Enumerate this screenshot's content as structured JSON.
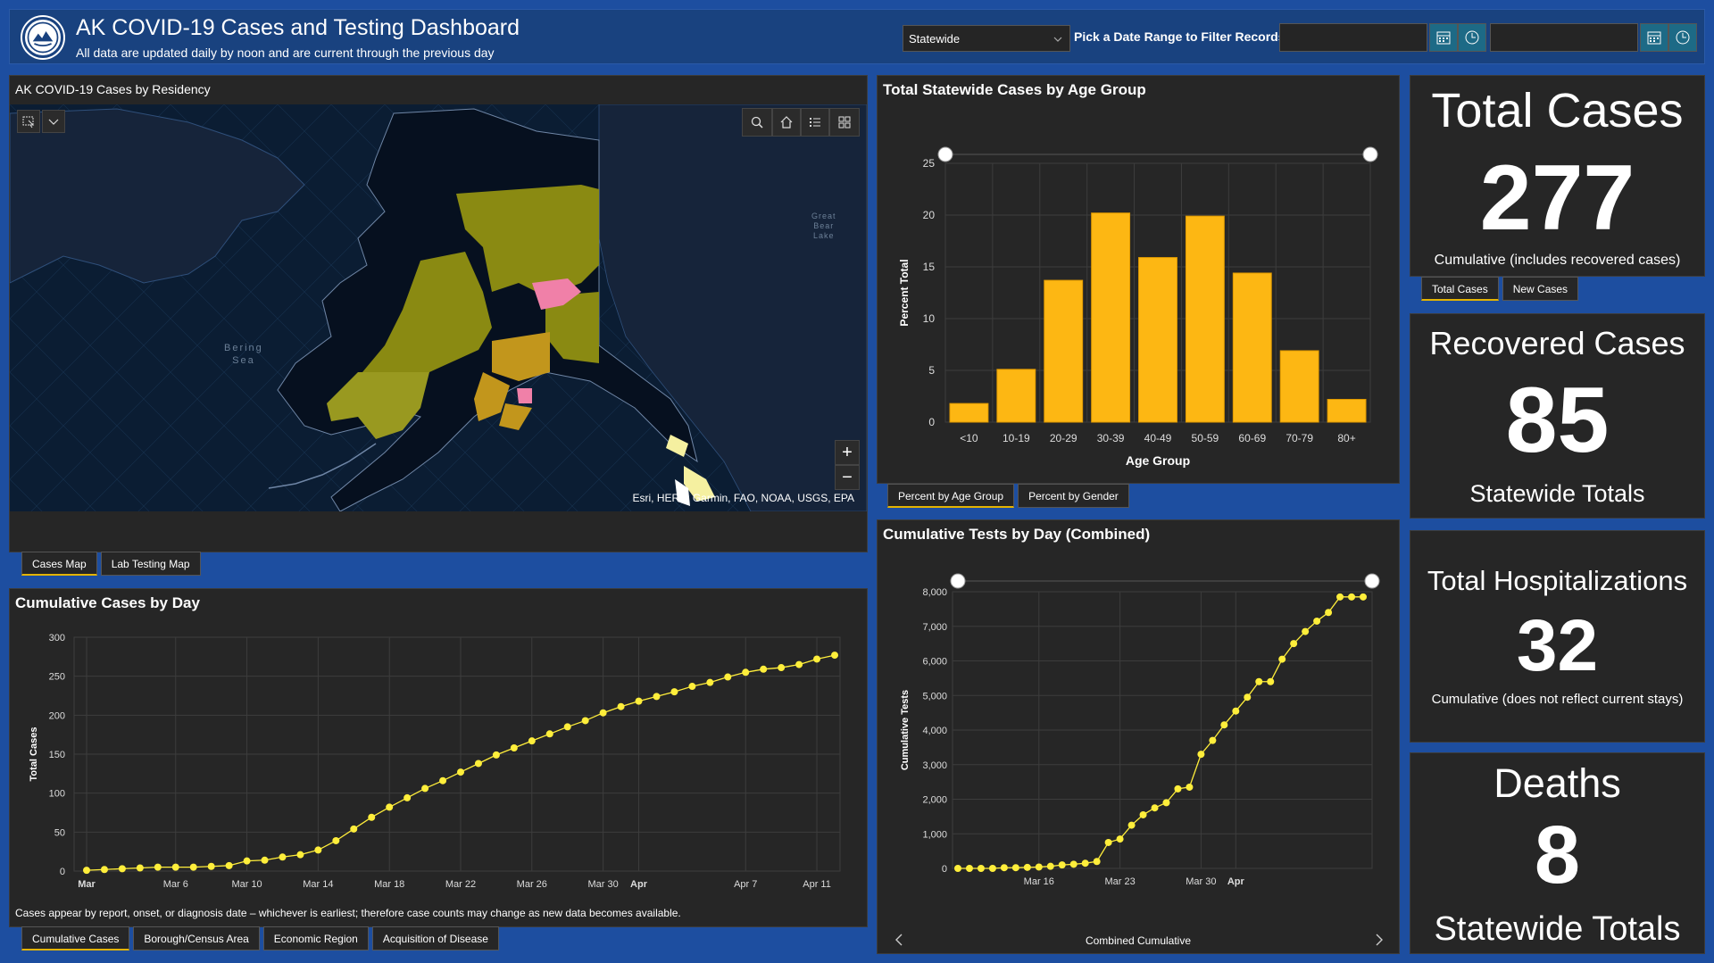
{
  "header": {
    "title": "AK COVID-19 Cases and Testing Dashboard",
    "subtitle": "All data are updated daily by noon and are current through the previous day",
    "region_value": "Statewide",
    "date_label": "Pick a Date Range to Filter Records"
  },
  "map_panel": {
    "title": "AK COVID-19 Cases by Residency",
    "attribution": "Esri, HERE, Garmin, FAO, NOAA, USGS, EPA",
    "labels": {
      "bering_1": "Bering",
      "bering_2": "Sea",
      "bear_1": "Great",
      "bear_2": "Bear",
      "bear_3": "Lake"
    },
    "zoom_in": "+",
    "zoom_out": "−",
    "tabs": [
      "Cases Map",
      "Lab Testing Map"
    ]
  },
  "age_panel": {
    "title": "Total Statewide Cases by Age Group",
    "tabs": [
      "Percent by Age Group",
      "Percent by Gender"
    ]
  },
  "cumulative_panel": {
    "title": "Cumulative Cases by Day",
    "footnote": "Cases appear by report, onset, or diagnosis date – whichever is earliest; therefore case counts may change as new data becomes available.",
    "tabs": [
      "Cumulative Cases",
      "Borough/Census Area",
      "Economic Region",
      "Acquisition of Disease"
    ]
  },
  "tests_panel": {
    "title": "Cumulative Tests by Day (Combined)",
    "nav_label": "Combined Cumulative"
  },
  "kpis": {
    "total_cases": {
      "title": "Total Cases",
      "value": "277",
      "sub": "Cumulative (includes recovered cases)",
      "tabs": [
        "Total Cases",
        "New Cases"
      ]
    },
    "recovered": {
      "title": "Recovered Cases",
      "value": "85",
      "sub": "Statewide Totals"
    },
    "hospitalizations": {
      "title": "Total Hospitalizations",
      "value": "32",
      "sub": "Cumulative (does not reflect current stays)"
    },
    "deaths": {
      "title": "Deaths",
      "value": "8",
      "sub": "Statewide Totals"
    }
  },
  "colors": {
    "bar": "#fdb713",
    "line": "#ffee3b",
    "panel": "#262626",
    "background": "#1d4ea0",
    "header": "#19427f",
    "map_olive": "#8a8a12",
    "map_pink": "#f080a8",
    "map_orange": "#c2961c"
  },
  "chart_data": [
    {
      "type": "bar",
      "title": "Total Statewide Cases by Age Group",
      "xlabel": "Age Group",
      "ylabel": "Percent Total",
      "categories": [
        "<10",
        "10-19",
        "20-29",
        "30-39",
        "40-49",
        "50-59",
        "60-69",
        "70-79",
        "80+"
      ],
      "values": [
        1.8,
        5.1,
        13.7,
        20.2,
        15.9,
        19.9,
        14.4,
        6.9,
        2.2
      ],
      "ylim": [
        0,
        25
      ],
      "yticks": [
        0,
        5,
        10,
        15,
        20,
        25
      ],
      "grid": true
    },
    {
      "type": "line",
      "title": "Cumulative Cases by Day",
      "ylabel": "Total Cases",
      "x": [
        "Mar 1",
        "Mar 2",
        "Mar 3",
        "Mar 4",
        "Mar 5",
        "Mar 6",
        "Mar 7",
        "Mar 8",
        "Mar 9",
        "Mar 10",
        "Mar 11",
        "Mar 12",
        "Mar 13",
        "Mar 14",
        "Mar 15",
        "Mar 16",
        "Mar 17",
        "Mar 18",
        "Mar 19",
        "Mar 20",
        "Mar 21",
        "Mar 22",
        "Mar 23",
        "Mar 24",
        "Mar 25",
        "Mar 26",
        "Mar 27",
        "Mar 28",
        "Mar 29",
        "Mar 30",
        "Mar 31",
        "Apr 1",
        "Apr 2",
        "Apr 3",
        "Apr 4",
        "Apr 5",
        "Apr 6",
        "Apr 7",
        "Apr 8",
        "Apr 9",
        "Apr 10",
        "Apr 11",
        "Apr 12"
      ],
      "values": [
        1,
        2,
        3,
        4,
        5,
        5,
        5,
        6,
        7,
        13,
        14,
        18,
        21,
        27,
        39,
        54,
        69,
        82,
        94,
        106,
        116,
        127,
        138,
        149,
        158,
        167,
        176,
        185,
        193,
        203,
        211,
        218,
        224,
        230,
        237,
        242,
        249,
        255,
        259,
        261,
        265,
        272,
        277
      ],
      "xticks": [
        "Mar",
        "Mar 6",
        "Mar 10",
        "Mar 14",
        "Mar 18",
        "Mar 22",
        "Mar 26",
        "Mar 30",
        "Apr",
        "Apr 7",
        "Apr 11"
      ],
      "ylim": [
        0,
        300
      ],
      "yticks": [
        0,
        50,
        100,
        150,
        200,
        250,
        300
      ],
      "grid": true
    },
    {
      "type": "line",
      "title": "Cumulative Tests by Day (Combined)",
      "xlabel": "Combined Cumulative",
      "ylabel": "Cumulative Tests",
      "x": [
        "Mar 9",
        "Mar 10",
        "Mar 11",
        "Mar 12",
        "Mar 13",
        "Mar 14",
        "Mar 15",
        "Mar 16",
        "Mar 17",
        "Mar 18",
        "Mar 19",
        "Mar 20",
        "Mar 21",
        "Mar 22",
        "Mar 23",
        "Mar 24",
        "Mar 25",
        "Mar 26",
        "Mar 27",
        "Mar 28",
        "Mar 29",
        "Mar 30",
        "Mar 31",
        "Apr 1",
        "Apr 2",
        "Apr 3",
        "Apr 4",
        "Apr 5",
        "Apr 6",
        "Apr 7",
        "Apr 8",
        "Apr 9",
        "Apr 10",
        "Apr 11",
        "Apr 12",
        "Apr 13"
      ],
      "values": [
        0,
        0,
        0,
        0,
        20,
        20,
        30,
        40,
        60,
        100,
        120,
        150,
        200,
        750,
        850,
        1250,
        1550,
        1750,
        1900,
        2300,
        2350,
        3300,
        3700,
        4150,
        4550,
        4950,
        5400,
        5400,
        6050,
        6500,
        6850,
        7150,
        7400,
        7850,
        7850,
        7850
      ],
      "xticks": [
        "Mar 16",
        "Mar 23",
        "Mar 30",
        "Apr"
      ],
      "ylim": [
        0,
        8000
      ],
      "yticks": [
        "0",
        "1,000",
        "2,000",
        "3,000",
        "4,000",
        "5,000",
        "6,000",
        "7,000",
        "8,000"
      ],
      "grid": true
    }
  ]
}
